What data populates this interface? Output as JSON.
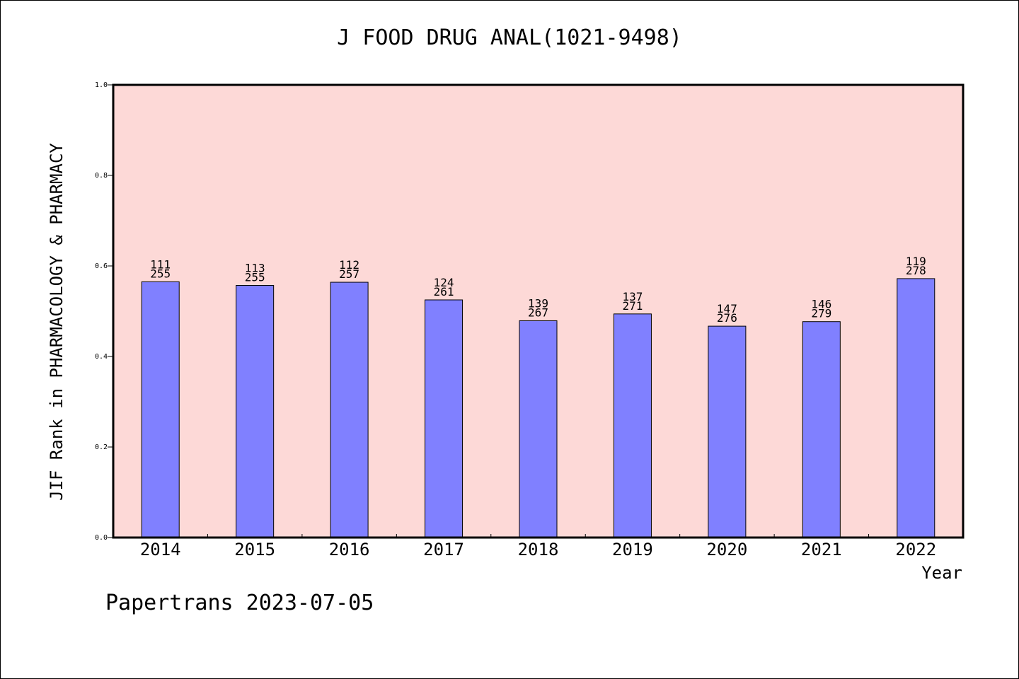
{
  "chart_data": {
    "type": "bar",
    "title": "J FOOD DRUG ANAL(1021-9498)",
    "xlabel": "Year",
    "ylabel": "JIF Rank in PHARMACOLOGY & PHARMACY",
    "categories": [
      "2014",
      "2015",
      "2016",
      "2017",
      "2018",
      "2019",
      "2020",
      "2021",
      "2022"
    ],
    "values": [
      0.565,
      0.557,
      0.564,
      0.525,
      0.479,
      0.494,
      0.467,
      0.477,
      0.572
    ],
    "annotations": [
      [
        "111",
        "255"
      ],
      [
        "113",
        "255"
      ],
      [
        "112",
        "257"
      ],
      [
        "124",
        "261"
      ],
      [
        "139",
        "267"
      ],
      [
        "137",
        "271"
      ],
      [
        "147",
        "276"
      ],
      [
        "146",
        "279"
      ],
      [
        "119",
        "278"
      ]
    ],
    "ylim": [
      0,
      1.0
    ],
    "yticks": [
      "0.0",
      "0.2",
      "0.4",
      "0.6",
      "0.8",
      "1.0"
    ],
    "colors": {
      "plot_bg": "#fdd9d7",
      "bar": "#8080ff",
      "bar_edge": "#000000"
    }
  },
  "footer": "Papertrans 2023-07-05"
}
